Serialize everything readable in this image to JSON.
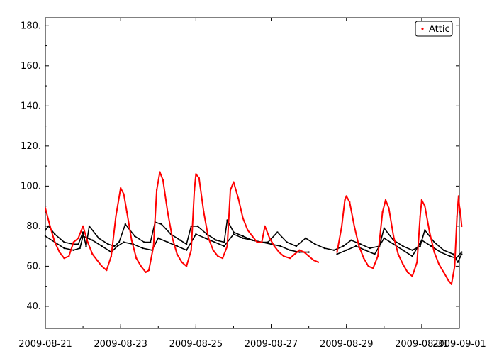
{
  "chart_data": {
    "type": "scatter",
    "title": "",
    "xlabel": "",
    "ylabel": "",
    "xlim": [
      "2009-08-21",
      "2009-09-01"
    ],
    "ylim": [
      29,
      184
    ],
    "x_ticks": [
      "2009-08-21",
      "2009-08-23",
      "2009-08-25",
      "2009-08-27",
      "2009-08-29",
      "2009-08-31",
      "2009-09-01"
    ],
    "y_ticks": [
      "180.",
      "160.",
      "140.",
      "120.",
      "100.",
      "80.",
      "60.",
      "40."
    ],
    "y_tick_values": [
      180,
      160,
      140,
      120,
      100,
      80,
      60,
      40
    ],
    "grid": false,
    "legend": {
      "position": "top-right",
      "entries": [
        "Attic"
      ]
    },
    "series": [
      {
        "name": "Attic",
        "color": "#ff0000",
        "points": [
          [
            "2009-08-21 00:00",
            89
          ],
          [
            "2009-08-21 03:00",
            80
          ],
          [
            "2009-08-21 06:00",
            72
          ],
          [
            "2009-08-21 09:00",
            67
          ],
          [
            "2009-08-21 12:00",
            64
          ],
          [
            "2009-08-21 15:00",
            65
          ],
          [
            "2009-08-21 18:00",
            72
          ],
          [
            "2009-08-21 21:00",
            74
          ],
          [
            "2009-08-22 00:00",
            80
          ],
          [
            "2009-08-22 03:00",
            72
          ],
          [
            "2009-08-22 06:00",
            66
          ],
          [
            "2009-08-22 09:00",
            63
          ],
          [
            "2009-08-22 12:00",
            60
          ],
          [
            "2009-08-22 15:00",
            58
          ],
          [
            "2009-08-22 18:00",
            65
          ],
          [
            "2009-08-22 21:00",
            85
          ],
          [
            "2009-08-23 00:00",
            99
          ],
          [
            "2009-08-23 02:00",
            96
          ],
          [
            "2009-08-23 04:00",
            87
          ],
          [
            "2009-08-23 07:00",
            73
          ],
          [
            "2009-08-23 10:00",
            64
          ],
          [
            "2009-08-23 13:00",
            60
          ],
          [
            "2009-08-23 16:00",
            57
          ],
          [
            "2009-08-23 18:00",
            58
          ],
          [
            "2009-08-23 21:00",
            70
          ],
          [
            "2009-08-23 23:00",
            98
          ],
          [
            "2009-08-24 01:00",
            107
          ],
          [
            "2009-08-24 03:00",
            103
          ],
          [
            "2009-08-24 06:00",
            87
          ],
          [
            "2009-08-24 09:00",
            74
          ],
          [
            "2009-08-24 12:00",
            66
          ],
          [
            "2009-08-24 15:00",
            62
          ],
          [
            "2009-08-24 18:00",
            60
          ],
          [
            "2009-08-24 21:00",
            68
          ],
          [
            "2009-08-24 23:00",
            98
          ],
          [
            "2009-08-25 00:00",
            106
          ],
          [
            "2009-08-25 02:00",
            104
          ],
          [
            "2009-08-25 05:00",
            87
          ],
          [
            "2009-08-25 08:00",
            74
          ],
          [
            "2009-08-25 11:00",
            68
          ],
          [
            "2009-08-25 14:00",
            65
          ],
          [
            "2009-08-25 17:00",
            64
          ],
          [
            "2009-08-25 20:00",
            70
          ],
          [
            "2009-08-25 22:00",
            98
          ],
          [
            "2009-08-26 00:00",
            102
          ],
          [
            "2009-08-26 03:00",
            94
          ],
          [
            "2009-08-26 06:00",
            84
          ],
          [
            "2009-08-26 09:00",
            78
          ],
          [
            "2009-08-26 12:00",
            75
          ],
          [
            "2009-08-26 15:00",
            72
          ],
          [
            "2009-08-26 18:00",
            72
          ],
          [
            "2009-08-26 20:00",
            80
          ],
          [
            "2009-08-26 23:00",
            74
          ],
          [
            "2009-08-27 02:00",
            70
          ],
          [
            "2009-08-27 05:00",
            67
          ],
          [
            "2009-08-27 08:00",
            65
          ],
          [
            "2009-08-27 12:00",
            64
          ],
          [
            "2009-08-27 15:00",
            66
          ],
          [
            "2009-08-27 18:00",
            68
          ],
          [
            "2009-08-27 21:00",
            67
          ],
          [
            "2009-08-28 00:00",
            65
          ],
          [
            "2009-08-28 03:00",
            63
          ],
          [
            "2009-08-28 06:00",
            62
          ],
          [
            "2009-08-28 18:00",
            67
          ],
          [
            "2009-08-28 21:00",
            80
          ],
          [
            "2009-08-28 23:00",
            93
          ],
          [
            "2009-08-29 00:00",
            95
          ],
          [
            "2009-08-29 02:00",
            92
          ],
          [
            "2009-08-29 05:00",
            80
          ],
          [
            "2009-08-29 08:00",
            70
          ],
          [
            "2009-08-29 11:00",
            64
          ],
          [
            "2009-08-29 14:00",
            60
          ],
          [
            "2009-08-29 17:00",
            59
          ],
          [
            "2009-08-29 20:00",
            65
          ],
          [
            "2009-08-29 23:00",
            87
          ],
          [
            "2009-08-30 01:00",
            93
          ],
          [
            "2009-08-30 03:00",
            89
          ],
          [
            "2009-08-30 06:00",
            75
          ],
          [
            "2009-08-30 09:00",
            66
          ],
          [
            "2009-08-30 12:00",
            61
          ],
          [
            "2009-08-30 15:00",
            57
          ],
          [
            "2009-08-30 18:00",
            55
          ],
          [
            "2009-08-30 21:00",
            62
          ],
          [
            "2009-08-30 23:00",
            85
          ],
          [
            "2009-08-31 00:00",
            93
          ],
          [
            "2009-08-31 02:00",
            90
          ],
          [
            "2009-08-31 05:00",
            77
          ],
          [
            "2009-08-31 08:00",
            67
          ],
          [
            "2009-08-31 11:00",
            61
          ],
          [
            "2009-08-31 14:00",
            57
          ],
          [
            "2009-08-31 17:00",
            53
          ],
          [
            "2009-08-31 19:00",
            51
          ],
          [
            "2009-08-31 21:00",
            60
          ],
          [
            "2009-08-31 22:30",
            85
          ],
          [
            "2009-08-31 23:30",
            95
          ],
          [
            "2009-09-01 00:00",
            90
          ],
          [
            "2009-09-01 00:40",
            87
          ],
          [
            "2009-09-01 01:30",
            80
          ]
        ]
      },
      {
        "name": "",
        "color": "#000000",
        "points": [
          [
            "2009-08-21 00:00",
            78
          ],
          [
            "2009-08-21 02:00",
            80
          ],
          [
            "2009-08-21 06:00",
            76
          ],
          [
            "2009-08-21 12:00",
            72
          ],
          [
            "2009-08-21 18:00",
            71
          ],
          [
            "2009-08-21 21:00",
            71
          ],
          [
            "2009-08-22 00:00",
            77
          ],
          [
            "2009-08-22 02:00",
            70
          ],
          [
            "2009-08-22 04:00",
            80
          ],
          [
            "2009-08-22 10:00",
            74
          ],
          [
            "2009-08-22 16:00",
            71
          ],
          [
            "2009-08-22 20:00",
            70
          ],
          [
            "2009-08-22 23:00",
            72
          ],
          [
            "2009-08-23 03:00",
            81
          ],
          [
            "2009-08-23 09:00",
            75
          ],
          [
            "2009-08-23 15:00",
            72
          ],
          [
            "2009-08-23 19:00",
            72
          ],
          [
            "2009-08-23 22:00",
            82
          ],
          [
            "2009-08-24 02:00",
            81
          ],
          [
            "2009-08-24 08:00",
            76
          ],
          [
            "2009-08-24 14:00",
            73
          ],
          [
            "2009-08-24 18:00",
            71
          ],
          [
            "2009-08-24 21:00",
            80
          ],
          [
            "2009-08-25 01:00",
            80
          ],
          [
            "2009-08-25 07:00",
            76
          ],
          [
            "2009-08-25 13:00",
            73
          ],
          [
            "2009-08-25 18:00",
            72
          ],
          [
            "2009-08-25 20:00",
            83
          ],
          [
            "2009-08-26 00:00",
            77
          ],
          [
            "2009-08-26 06:00",
            75
          ],
          [
            "2009-08-26 12:00",
            73
          ],
          [
            "2009-08-26 18:00",
            72
          ],
          [
            "2009-08-26 22:00",
            72
          ],
          [
            "2009-08-27 04:00",
            77
          ],
          [
            "2009-08-27 10:00",
            72
          ],
          [
            "2009-08-27 16:00",
            70
          ],
          [
            "2009-08-27 22:00",
            74
          ],
          [
            "2009-08-28 04:00",
            71
          ],
          [
            "2009-08-28 10:00",
            69
          ],
          [
            "2009-08-28 16:00",
            68
          ],
          [
            "2009-08-28 22:00",
            70
          ],
          [
            "2009-08-29 03:00",
            73
          ],
          [
            "2009-08-29 09:00",
            71
          ],
          [
            "2009-08-29 15:00",
            69
          ],
          [
            "2009-08-29 21:00",
            70
          ],
          [
            "2009-08-30 00:00",
            79
          ],
          [
            "2009-08-30 06:00",
            73
          ],
          [
            "2009-08-30 12:00",
            70
          ],
          [
            "2009-08-30 18:00",
            68
          ],
          [
            "2009-08-30 23:00",
            70
          ],
          [
            "2009-08-31 02:00",
            78
          ],
          [
            "2009-08-31 08:00",
            72
          ],
          [
            "2009-08-31 14:00",
            68
          ],
          [
            "2009-08-31 20:00",
            66
          ],
          [
            "2009-08-31 23:00",
            62
          ],
          [
            "2009-09-01 01:30",
            66
          ]
        ]
      },
      {
        "name": "",
        "color": "#000000",
        "points": [
          [
            "2009-08-21 00:00",
            75
          ],
          [
            "2009-08-21 06:00",
            72
          ],
          [
            "2009-08-21 12:00",
            69
          ],
          [
            "2009-08-21 18:00",
            68
          ],
          [
            "2009-08-21 22:00",
            69
          ],
          [
            "2009-08-22 00:00",
            75
          ],
          [
            "2009-08-22 06:00",
            73
          ],
          [
            "2009-08-22 12:00",
            70
          ],
          [
            "2009-08-22 18:00",
            67
          ],
          [
            "2009-08-22 22:00",
            70
          ],
          [
            "2009-08-23 02:00",
            72
          ],
          [
            "2009-08-23 08:00",
            71
          ],
          [
            "2009-08-23 14:00",
            69
          ],
          [
            "2009-08-23 20:00",
            68
          ],
          [
            "2009-08-24 00:00",
            74
          ],
          [
            "2009-08-24 06:00",
            72
          ],
          [
            "2009-08-24 12:00",
            70
          ],
          [
            "2009-08-24 18:00",
            68
          ],
          [
            "2009-08-25 00:00",
            76
          ],
          [
            "2009-08-25 06:00",
            74
          ],
          [
            "2009-08-25 12:00",
            72
          ],
          [
            "2009-08-25 18:00",
            70
          ],
          [
            "2009-08-26 00:00",
            76
          ],
          [
            "2009-08-26 06:00",
            74
          ],
          [
            "2009-08-26 12:00",
            73
          ],
          [
            "2009-08-26 18:00",
            72
          ],
          [
            "2009-08-27 00:00",
            71
          ],
          [
            "2009-08-27 06:00",
            70
          ],
          [
            "2009-08-27 12:00",
            68
          ],
          [
            "2009-08-27 18:00",
            67
          ],
          [
            "2009-08-28 00:00",
            67
          ],
          [
            "2009-08-28 18:00",
            66
          ],
          [
            "2009-08-29 00:00",
            68
          ],
          [
            "2009-08-29 06:00",
            70
          ],
          [
            "2009-08-29 12:00",
            68
          ],
          [
            "2009-08-29 18:00",
            66
          ],
          [
            "2009-08-30 00:00",
            74
          ],
          [
            "2009-08-30 06:00",
            71
          ],
          [
            "2009-08-30 12:00",
            68
          ],
          [
            "2009-08-30 18:00",
            65
          ],
          [
            "2009-08-31 00:00",
            73
          ],
          [
            "2009-08-31 06:00",
            70
          ],
          [
            "2009-08-31 12:00",
            67
          ],
          [
            "2009-08-31 18:00",
            65
          ],
          [
            "2009-08-31 22:00",
            64
          ],
          [
            "2009-09-01 01:30",
            67
          ]
        ]
      }
    ]
  }
}
